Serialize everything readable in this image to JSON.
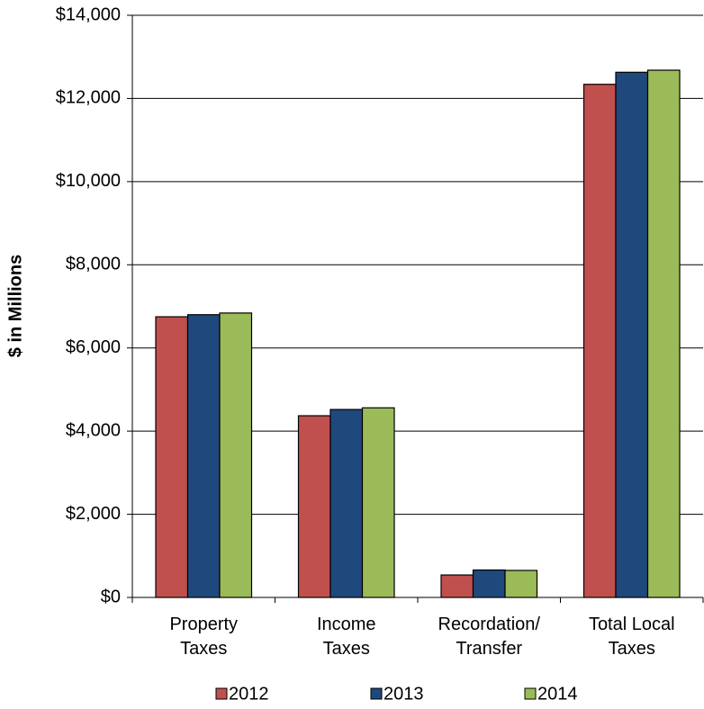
{
  "chart_data": {
    "type": "bar",
    "y_label": "$ in Millions",
    "categories": [
      "Property\nTaxes",
      "Income\nTaxes",
      "Recordation/\nTransfer",
      "Total Local\nTaxes"
    ],
    "series": [
      {
        "name": "2012",
        "color": "#c0504d",
        "values": [
          6750,
          4370,
          540,
          12340
        ]
      },
      {
        "name": "2013",
        "color": "#1f497d",
        "values": [
          6800,
          4520,
          660,
          12630
        ]
      },
      {
        "name": "2014",
        "color": "#9bbb59",
        "values": [
          6840,
          4560,
          650,
          12680
        ]
      }
    ],
    "ylim": [
      0,
      14000
    ],
    "yticks": [
      {
        "value": 0,
        "label": "$0"
      },
      {
        "value": 2000,
        "label": "$2,000"
      },
      {
        "value": 4000,
        "label": "$4,000"
      },
      {
        "value": 6000,
        "label": "$6,000"
      },
      {
        "value": 8000,
        "label": "$8,000"
      },
      {
        "value": 10000,
        "label": "$10,000"
      },
      {
        "value": 12000,
        "label": "$12,000"
      },
      {
        "value": 14000,
        "label": "$14,000"
      }
    ],
    "grid": true,
    "legend": "bottom"
  }
}
